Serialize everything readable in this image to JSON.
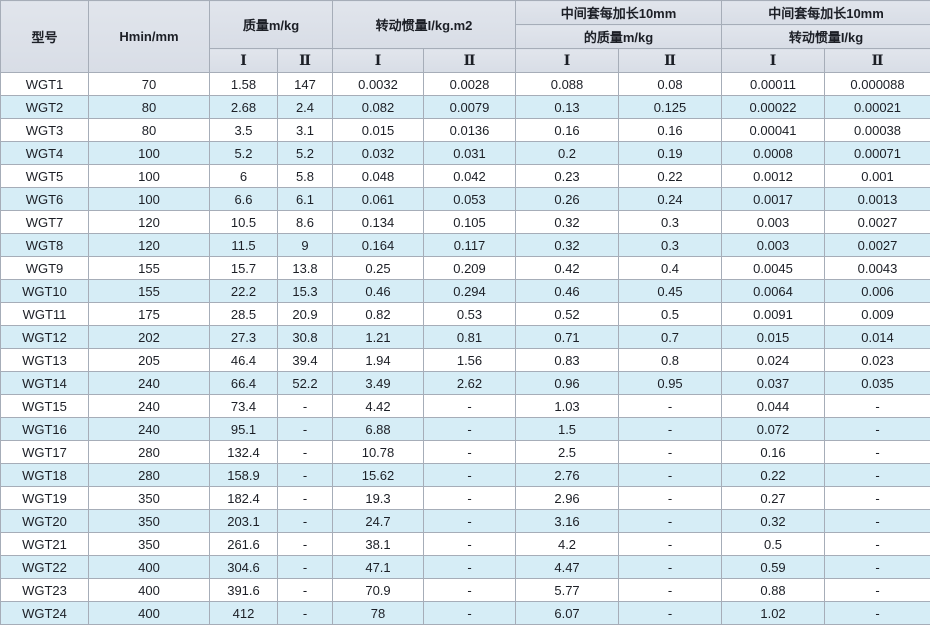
{
  "colors": {
    "header_bg": "#d8dde6",
    "row_alt_bg": "#d6edf6",
    "border": "#a6adb8",
    "text": "#1c1f26"
  },
  "table": {
    "header": {
      "model": "型号",
      "hmin": "Hmin/mm",
      "mass": "质量m/kg",
      "inertia": "转动惯量I/kg.m2",
      "ext_mass_line1": "中间套每加长10mm",
      "ext_mass_line2": "的质量m/kg",
      "ext_inertia_line1": "中间套每加长10mm",
      "ext_inertia_line2": "转动惯量I/kg",
      "sub_I": "Ⅰ",
      "sub_II": "Ⅱ"
    },
    "rows": [
      [
        "WGT1",
        "70",
        "1.58",
        "147",
        "0.0032",
        "0.0028",
        "0.088",
        "0.08",
        "0.00011",
        "0.000088"
      ],
      [
        "WGT2",
        "80",
        "2.68",
        "2.4",
        "0.082",
        "0.0079",
        "0.13",
        "0.125",
        "0.00022",
        "0.00021"
      ],
      [
        "WGT3",
        "80",
        "3.5",
        "3.1",
        "0.015",
        "0.0136",
        "0.16",
        "0.16",
        "0.00041",
        "0.00038"
      ],
      [
        "WGT4",
        "100",
        "5.2",
        "5.2",
        "0.032",
        "0.031",
        "0.2",
        "0.19",
        "0.0008",
        "0.00071"
      ],
      [
        "WGT5",
        "100",
        "6",
        "5.8",
        "0.048",
        "0.042",
        "0.23",
        "0.22",
        "0.0012",
        "0.001"
      ],
      [
        "WGT6",
        "100",
        "6.6",
        "6.1",
        "0.061",
        "0.053",
        "0.26",
        "0.24",
        "0.0017",
        "0.0013"
      ],
      [
        "WGT7",
        "120",
        "10.5",
        "8.6",
        "0.134",
        "0.105",
        "0.32",
        "0.3",
        "0.003",
        "0.0027"
      ],
      [
        "WGT8",
        "120",
        "11.5",
        "9",
        "0.164",
        "0.117",
        "0.32",
        "0.3",
        "0.003",
        "0.0027"
      ],
      [
        "WGT9",
        "155",
        "15.7",
        "13.8",
        "0.25",
        "0.209",
        "0.42",
        "0.4",
        "0.0045",
        "0.0043"
      ],
      [
        "WGT10",
        "155",
        "22.2",
        "15.3",
        "0.46",
        "0.294",
        "0.46",
        "0.45",
        "0.0064",
        "0.006"
      ],
      [
        "WGT11",
        "175",
        "28.5",
        "20.9",
        "0.82",
        "0.53",
        "0.52",
        "0.5",
        "0.0091",
        "0.009"
      ],
      [
        "WGT12",
        "202",
        "27.3",
        "30.8",
        "1.21",
        "0.81",
        "0.71",
        "0.7",
        "0.015",
        "0.014"
      ],
      [
        "WGT13",
        "205",
        "46.4",
        "39.4",
        "1.94",
        "1.56",
        "0.83",
        "0.8",
        "0.024",
        "0.023"
      ],
      [
        "WGT14",
        "240",
        "66.4",
        "52.2",
        "3.49",
        "2.62",
        "0.96",
        "0.95",
        "0.037",
        "0.035"
      ],
      [
        "WGT15",
        "240",
        "73.4",
        "-",
        "4.42",
        "-",
        "1.03",
        "-",
        "0.044",
        "-"
      ],
      [
        "WGT16",
        "240",
        "95.1",
        "-",
        "6.88",
        "-",
        "1.5",
        "-",
        "0.072",
        "-"
      ],
      [
        "WGT17",
        "280",
        "132.4",
        "-",
        "10.78",
        "-",
        "2.5",
        "-",
        "0.16",
        "-"
      ],
      [
        "WGT18",
        "280",
        "158.9",
        "-",
        "15.62",
        "-",
        "2.76",
        "-",
        "0.22",
        "-"
      ],
      [
        "WGT19",
        "350",
        "182.4",
        "-",
        "19.3",
        "-",
        "2.96",
        "-",
        "0.27",
        "-"
      ],
      [
        "WGT20",
        "350",
        "203.1",
        "-",
        "24.7",
        "-",
        "3.16",
        "-",
        "0.32",
        "-"
      ],
      [
        "WGT21",
        "350",
        "261.6",
        "-",
        "38.1",
        "-",
        "4.2",
        "-",
        "0.5",
        "-"
      ],
      [
        "WGT22",
        "400",
        "304.6",
        "-",
        "47.1",
        "-",
        "4.47",
        "-",
        "0.59",
        "-"
      ],
      [
        "WGT23",
        "400",
        "391.6",
        "-",
        "70.9",
        "-",
        "5.77",
        "-",
        "0.88",
        "-"
      ],
      [
        "WGT24",
        "400",
        "412",
        "-",
        "78",
        "-",
        "6.07",
        "-",
        "1.02",
        "-"
      ]
    ]
  }
}
